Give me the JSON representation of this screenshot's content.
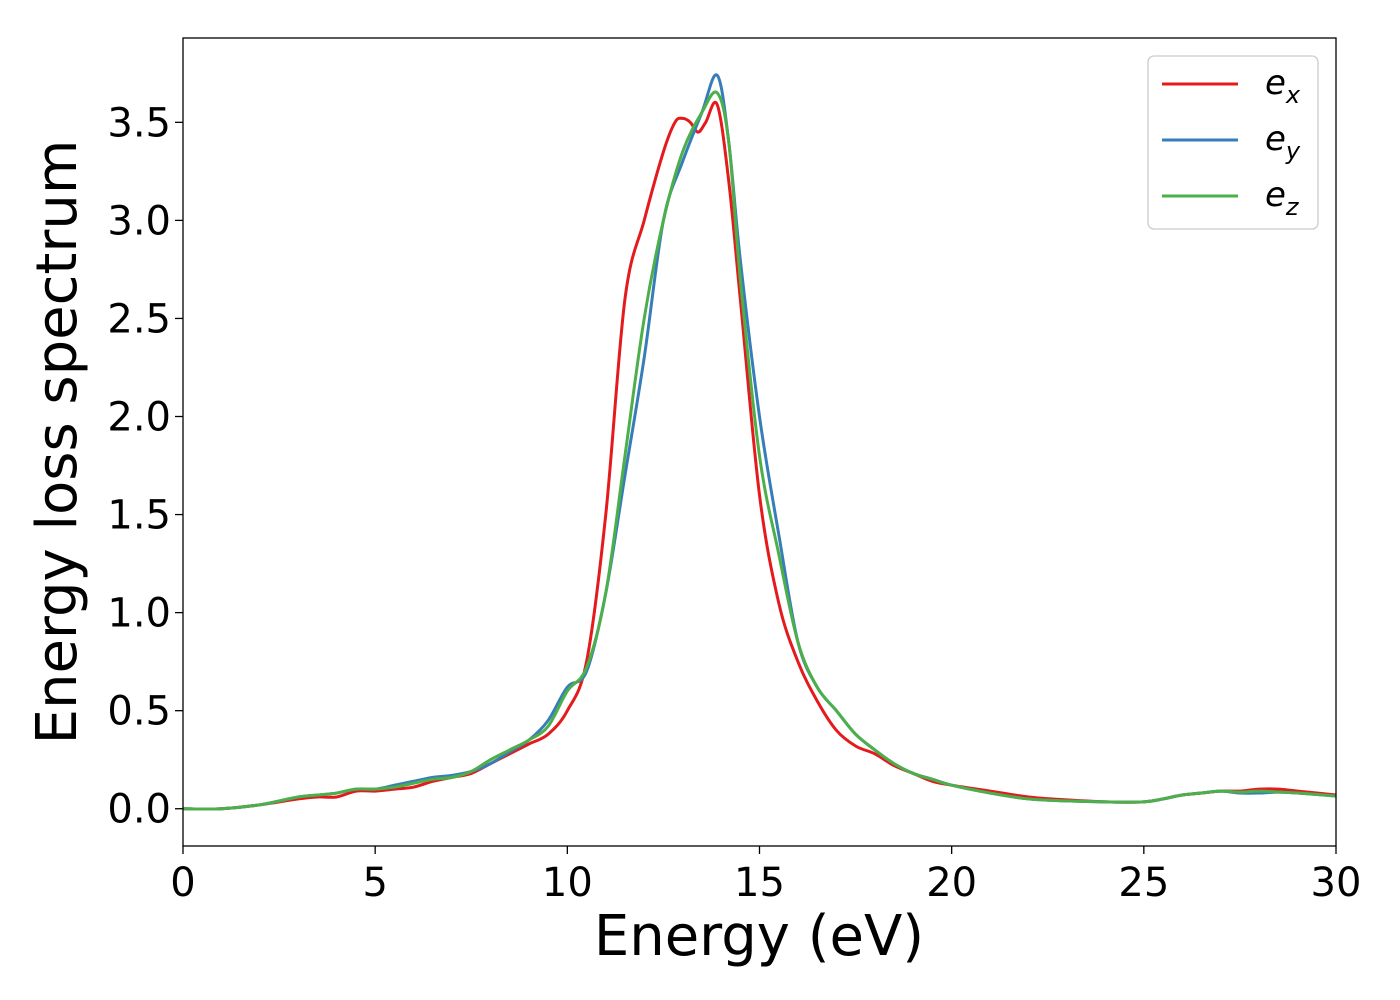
{
  "chart_data": {
    "type": "line",
    "xlabel": "Energy (eV)",
    "ylabel": "Energy loss spectrum",
    "xlim": [
      0,
      30
    ],
    "ylim": [
      -0.19,
      3.93
    ],
    "xticks": [
      0,
      5,
      10,
      15,
      20,
      25,
      30
    ],
    "xtick_labels": [
      "0",
      "5",
      "10",
      "15",
      "20",
      "25",
      "30"
    ],
    "yticks": [
      0.0,
      0.5,
      1.0,
      1.5,
      2.0,
      2.5,
      3.0,
      3.5
    ],
    "ytick_labels": [
      "0.0",
      "0.5",
      "1.0",
      "1.5",
      "2.0",
      "2.5",
      "3.0",
      "3.5"
    ],
    "grid": false,
    "legend_position": "top-right",
    "series": [
      {
        "name": "e",
        "subscript": "x",
        "color": "#e41a1c",
        "x": [
          0,
          1,
          2,
          3,
          3.5,
          4,
          4.5,
          5,
          5.5,
          6,
          6.5,
          7,
          7.5,
          8,
          8.5,
          9,
          9.5,
          10,
          10.5,
          11,
          11.5,
          12,
          12.5,
          12.8,
          13,
          13.2,
          13.4,
          13.6,
          13.9,
          14.2,
          14.5,
          15,
          15.5,
          16,
          16.5,
          17,
          17.5,
          18,
          18.5,
          19,
          19.5,
          20,
          21,
          22,
          23,
          24,
          25,
          25.5,
          26,
          26.5,
          27,
          27.5,
          28,
          28.5,
          29,
          30
        ],
        "y": [
          0,
          0,
          0.02,
          0.05,
          0.06,
          0.06,
          0.09,
          0.09,
          0.1,
          0.11,
          0.14,
          0.16,
          0.18,
          0.23,
          0.28,
          0.33,
          0.38,
          0.5,
          0.75,
          1.5,
          2.6,
          3.0,
          3.35,
          3.5,
          3.52,
          3.5,
          3.45,
          3.5,
          3.59,
          3.2,
          2.6,
          1.6,
          1.05,
          0.75,
          0.55,
          0.4,
          0.32,
          0.28,
          0.22,
          0.18,
          0.14,
          0.12,
          0.09,
          0.06,
          0.045,
          0.035,
          0.035,
          0.05,
          0.07,
          0.08,
          0.09,
          0.09,
          0.1,
          0.1,
          0.09,
          0.07
        ]
      },
      {
        "name": "e",
        "subscript": "y",
        "color": "#377eb8",
        "x": [
          0,
          1,
          2,
          3,
          3.5,
          4,
          4.5,
          5,
          5.5,
          6,
          6.5,
          7,
          7.5,
          8,
          8.5,
          9,
          9.5,
          10,
          10.5,
          11,
          11.5,
          12,
          12.5,
          13,
          13.5,
          13.9,
          14.2,
          14.5,
          15,
          15.5,
          16,
          16.5,
          17,
          17.5,
          18,
          18.5,
          19,
          19.5,
          20,
          21,
          22,
          23,
          24,
          25,
          25.5,
          26,
          26.5,
          27,
          27.5,
          28,
          28.5,
          29,
          30
        ],
        "y": [
          0,
          0,
          0.02,
          0.06,
          0.07,
          0.08,
          0.1,
          0.1,
          0.12,
          0.14,
          0.16,
          0.17,
          0.19,
          0.23,
          0.29,
          0.35,
          0.45,
          0.62,
          0.7,
          1.1,
          1.7,
          2.3,
          3.0,
          3.3,
          3.55,
          3.74,
          3.4,
          2.8,
          2.0,
          1.4,
          0.85,
          0.62,
          0.5,
          0.38,
          0.3,
          0.23,
          0.18,
          0.15,
          0.12,
          0.08,
          0.05,
          0.04,
          0.035,
          0.035,
          0.05,
          0.07,
          0.08,
          0.09,
          0.08,
          0.08,
          0.085,
          0.08,
          0.065
        ]
      },
      {
        "name": "e",
        "subscript": "z",
        "color": "#4daf4a",
        "x": [
          0,
          1,
          2,
          3,
          3.5,
          4,
          4.5,
          5,
          5.5,
          6,
          6.5,
          7,
          7.5,
          8,
          8.5,
          9,
          9.5,
          10,
          10.5,
          11,
          11.5,
          12,
          12.5,
          13,
          13.5,
          13.9,
          14.2,
          14.5,
          15,
          15.5,
          16,
          16.5,
          17,
          17.5,
          18,
          18.5,
          19,
          19.5,
          20,
          21,
          22,
          23,
          24,
          25,
          25.5,
          26,
          26.5,
          27,
          27.5,
          28,
          28.5,
          29,
          30
        ],
        "y": [
          0,
          0,
          0.02,
          0.06,
          0.07,
          0.08,
          0.1,
          0.1,
          0.11,
          0.13,
          0.15,
          0.16,
          0.19,
          0.25,
          0.3,
          0.35,
          0.42,
          0.6,
          0.72,
          1.1,
          1.8,
          2.5,
          3.0,
          3.35,
          3.55,
          3.65,
          3.4,
          2.7,
          1.8,
          1.3,
          0.85,
          0.62,
          0.5,
          0.38,
          0.3,
          0.23,
          0.18,
          0.15,
          0.12,
          0.08,
          0.05,
          0.04,
          0.035,
          0.035,
          0.05,
          0.07,
          0.08,
          0.09,
          0.085,
          0.09,
          0.085,
          0.08,
          0.065
        ]
      }
    ]
  }
}
